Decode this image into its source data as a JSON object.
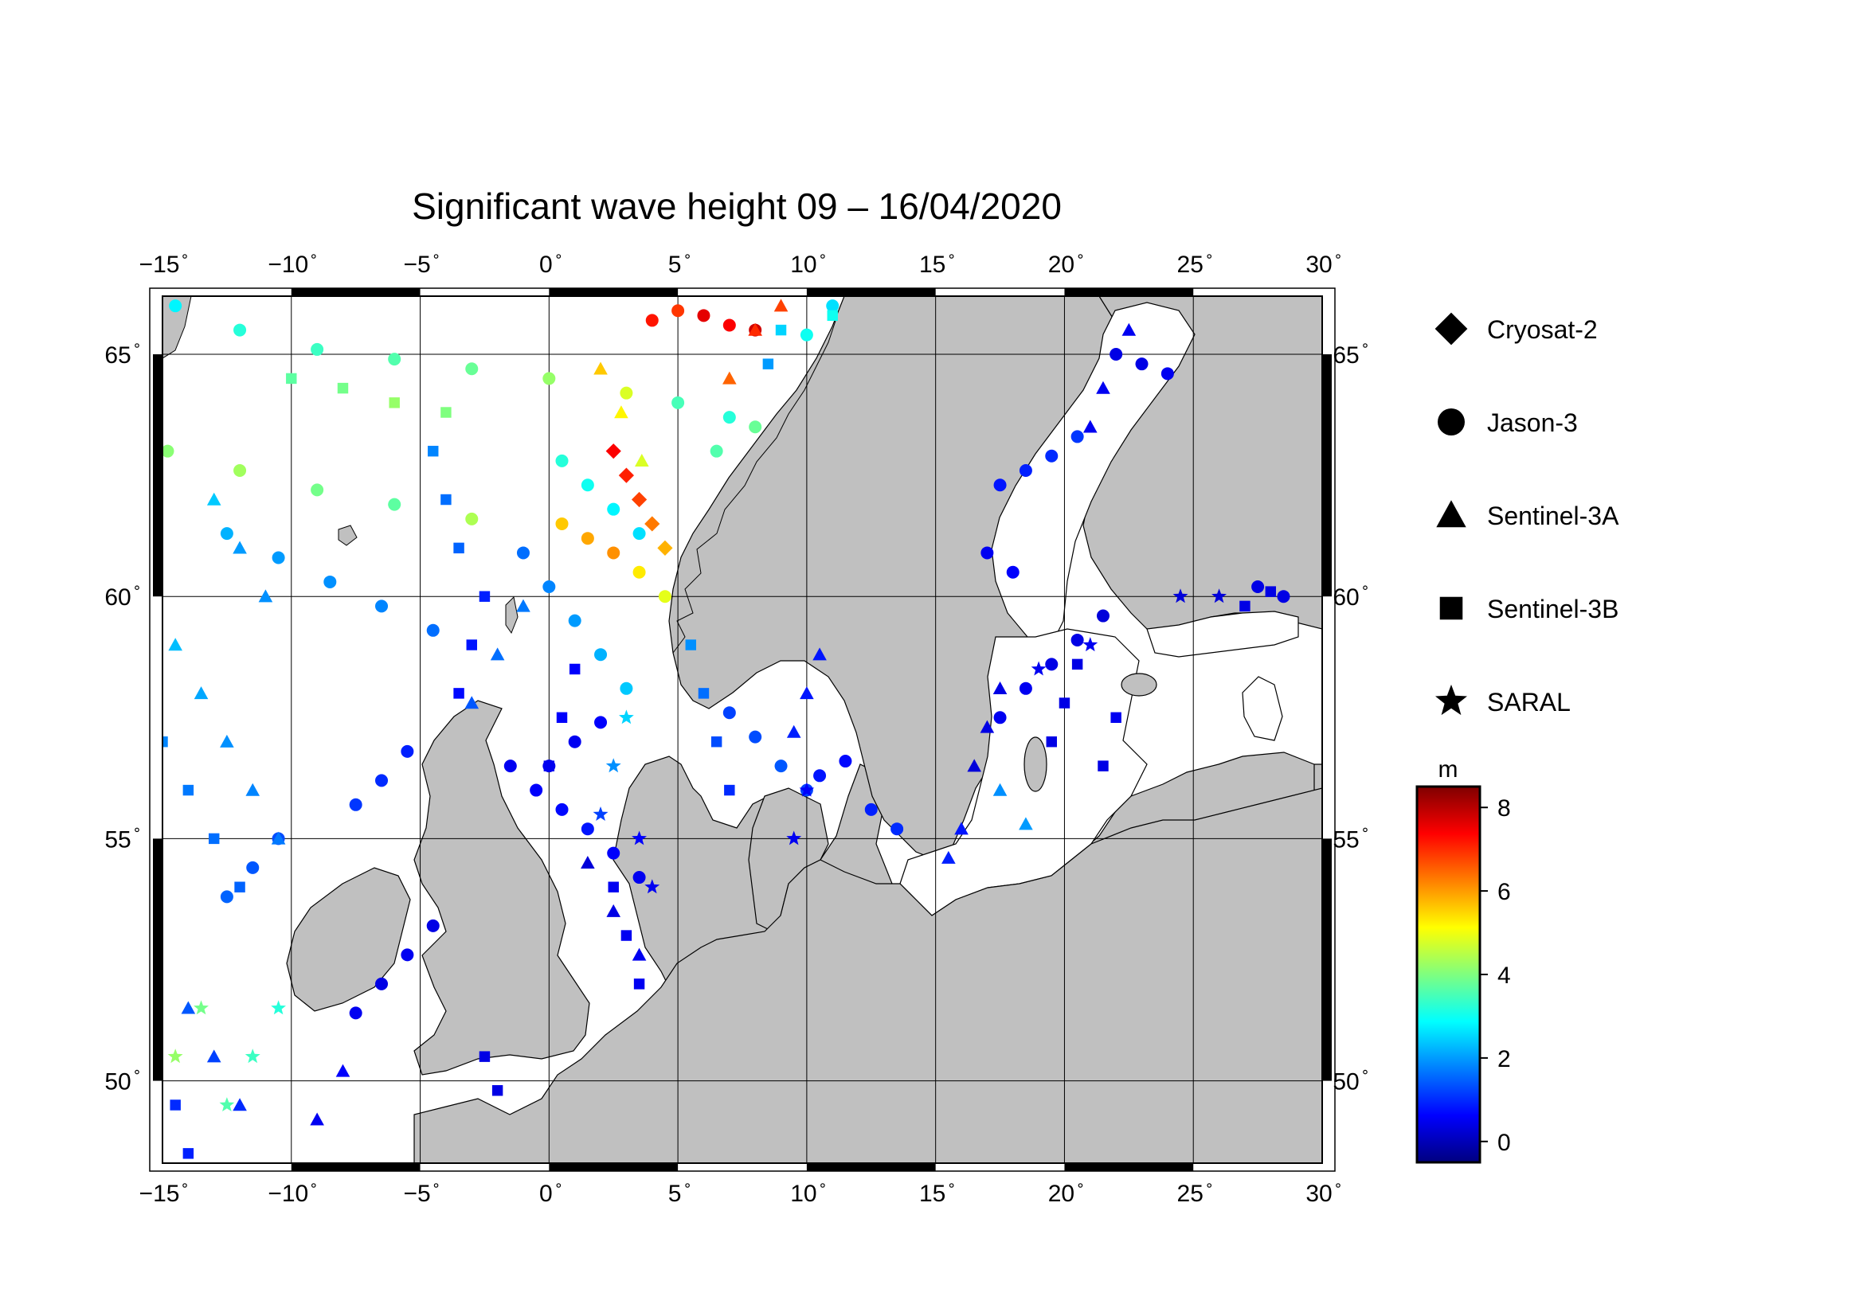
{
  "title": "Significant wave height 09 – 16/04/2020",
  "lon_ticks": [
    {
      "value": -15,
      "label": "−15"
    },
    {
      "value": -10,
      "label": "−10"
    },
    {
      "value": -5,
      "label": "−5"
    },
    {
      "value": 0,
      "label": "0"
    },
    {
      "value": 5,
      "label": "5"
    },
    {
      "value": 10,
      "label": "10"
    },
    {
      "value": 15,
      "label": "15"
    },
    {
      "value": 20,
      "label": "20"
    },
    {
      "value": 25,
      "label": "25"
    },
    {
      "value": 30,
      "label": "30"
    }
  ],
  "lat_ticks": [
    {
      "value": 65,
      "label": "65"
    },
    {
      "value": 60,
      "label": "60"
    },
    {
      "value": 55,
      "label": "55"
    },
    {
      "value": 50,
      "label": "50"
    }
  ],
  "legend": [
    {
      "name": "Cryosat-2",
      "symbol": "diamond"
    },
    {
      "name": "Jason-3",
      "symbol": "circle"
    },
    {
      "name": "Sentinel-3A",
      "symbol": "triangle"
    },
    {
      "name": "Sentinel-3B",
      "symbol": "square"
    },
    {
      "name": "SARAL",
      "symbol": "star"
    }
  ],
  "colorbar": {
    "unit": "m",
    "min": -0.5,
    "max": 8.5,
    "ticks": [
      {
        "value": 0,
        "label": "0"
      },
      {
        "value": 2,
        "label": "2"
      },
      {
        "value": 4,
        "label": "4"
      },
      {
        "value": 6,
        "label": "6"
      },
      {
        "value": 8,
        "label": "8"
      }
    ],
    "colors": [
      "#00007f",
      "#0000ff",
      "#007fff",
      "#00ffff",
      "#7fff7f",
      "#ffff00",
      "#ff7f00",
      "#ff0000",
      "#7f0000"
    ]
  },
  "colors": {
    "land": "#c0c0c0",
    "sea": "#ffffff",
    "grid": "#000000"
  },
  "chart_data": {
    "type": "scatter",
    "xlim": [
      -15,
      30
    ],
    "ylim": [
      48.3,
      66.2
    ],
    "value_unit": "m",
    "series": [
      {
        "name": "Jason-3",
        "symbol": "circle",
        "points": [
          [
            -14.5,
            66.0,
            2.8
          ],
          [
            -12.0,
            65.5,
            3.2
          ],
          [
            -9.0,
            65.1,
            3.4
          ],
          [
            -6.0,
            64.9,
            3.6
          ],
          [
            -3.0,
            64.7,
            3.8
          ],
          [
            0.0,
            64.5,
            4.2
          ],
          [
            3.0,
            64.2,
            4.8
          ],
          [
            5.0,
            64.0,
            3.5
          ],
          [
            7.0,
            63.7,
            3.2
          ],
          [
            -14.8,
            63.0,
            4.1
          ],
          [
            -12.0,
            62.6,
            4.3
          ],
          [
            -9.0,
            62.2,
            3.9
          ],
          [
            -6.0,
            61.9,
            3.7
          ],
          [
            -3.0,
            61.6,
            4.4
          ],
          [
            -12.5,
            61.3,
            2.2
          ],
          [
            -10.5,
            60.8,
            2.0
          ],
          [
            -8.5,
            60.3,
            1.9
          ],
          [
            -6.5,
            59.8,
            1.8
          ],
          [
            -4.5,
            59.3,
            1.6
          ],
          [
            -1.0,
            60.9,
            1.6
          ],
          [
            0.0,
            60.2,
            1.8
          ],
          [
            1.0,
            59.5,
            2.0
          ],
          [
            2.0,
            58.8,
            2.2
          ],
          [
            3.0,
            58.1,
            2.4
          ],
          [
            0.5,
            61.5,
            5.6
          ],
          [
            1.5,
            61.2,
            5.9
          ],
          [
            2.5,
            60.9,
            6.1
          ],
          [
            3.5,
            60.5,
            5.3
          ],
          [
            4.5,
            60.0,
            4.9
          ],
          [
            0.5,
            62.8,
            3.2
          ],
          [
            1.5,
            62.3,
            3.0
          ],
          [
            2.5,
            61.8,
            2.8
          ],
          [
            3.5,
            61.3,
            2.6
          ],
          [
            6.0,
            65.8,
            7.6
          ],
          [
            7.0,
            65.6,
            7.4
          ],
          [
            8.0,
            65.5,
            7.8
          ],
          [
            4.0,
            65.7,
            7.2
          ],
          [
            5.0,
            65.9,
            6.9
          ],
          [
            -1.5,
            56.5,
            0.5
          ],
          [
            -0.5,
            56.0,
            0.6
          ],
          [
            0.5,
            55.6,
            0.7
          ],
          [
            1.5,
            55.2,
            0.8
          ],
          [
            2.5,
            54.7,
            0.6
          ],
          [
            3.5,
            54.2,
            0.5
          ],
          [
            0.0,
            56.5,
            0.4
          ],
          [
            1.0,
            57.0,
            0.5
          ],
          [
            2.0,
            57.4,
            0.6
          ],
          [
            -5.5,
            56.8,
            0.9
          ],
          [
            -6.5,
            56.2,
            1.0
          ],
          [
            -7.5,
            55.7,
            1.1
          ],
          [
            -10.5,
            55.0,
            1.3
          ],
          [
            -11.5,
            54.4,
            1.4
          ],
          [
            -12.5,
            53.8,
            1.5
          ],
          [
            -4.5,
            53.2,
            0.4
          ],
          [
            -5.5,
            52.6,
            0.5
          ],
          [
            -6.5,
            52.0,
            0.4
          ],
          [
            -7.5,
            51.4,
            0.5
          ],
          [
            7.0,
            57.6,
            1.2
          ],
          [
            8.0,
            57.1,
            1.3
          ],
          [
            9.0,
            56.5,
            1.4
          ],
          [
            10.0,
            56.0,
            1.2
          ],
          [
            10.5,
            56.3,
            0.8
          ],
          [
            11.5,
            56.6,
            0.7
          ],
          [
            12.5,
            55.6,
            0.9
          ],
          [
            13.5,
            55.2,
            1.0
          ],
          [
            17.5,
            57.5,
            0.5
          ],
          [
            18.5,
            58.1,
            0.5
          ],
          [
            19.5,
            58.6,
            0.4
          ],
          [
            20.5,
            59.1,
            0.4
          ],
          [
            21.5,
            59.6,
            0.3
          ],
          [
            17.5,
            62.3,
            0.8
          ],
          [
            18.5,
            62.6,
            0.9
          ],
          [
            19.5,
            62.9,
            1.0
          ],
          [
            20.5,
            63.3,
            1.1
          ],
          [
            17.0,
            60.9,
            0.5
          ],
          [
            18.0,
            60.5,
            0.6
          ],
          [
            22.0,
            65.0,
            0.4
          ],
          [
            23.0,
            64.8,
            0.4
          ],
          [
            24.0,
            64.6,
            0.5
          ],
          [
            27.5,
            60.2,
            0.4
          ],
          [
            28.5,
            60.0,
            0.4
          ],
          [
            8.0,
            63.5,
            3.8
          ],
          [
            6.5,
            63.0,
            3.6
          ],
          [
            10.0,
            65.4,
            3.0
          ],
          [
            11.0,
            66.0,
            2.6
          ]
        ]
      },
      {
        "name": "Sentinel-3A",
        "symbol": "triangle",
        "points": [
          [
            -14.5,
            59.0,
            2.3
          ],
          [
            -13.5,
            58.0,
            2.1
          ],
          [
            -12.5,
            57.0,
            1.9
          ],
          [
            -11.5,
            56.0,
            1.8
          ],
          [
            -10.5,
            55.0,
            1.7
          ],
          [
            -13.0,
            62.0,
            2.4
          ],
          [
            -12.0,
            61.0,
            2.0
          ],
          [
            -11.0,
            60.0,
            1.9
          ],
          [
            -14.0,
            51.5,
            1.4
          ],
          [
            -13.0,
            50.5,
            1.2
          ],
          [
            -12.0,
            49.5,
            1.0
          ],
          [
            -8.0,
            50.2,
            0.6
          ],
          [
            -9.0,
            49.2,
            0.5
          ],
          [
            -1.0,
            59.8,
            1.7
          ],
          [
            -2.0,
            58.8,
            1.6
          ],
          [
            -3.0,
            57.8,
            1.4
          ],
          [
            1.5,
            54.5,
            0.3
          ],
          [
            2.5,
            53.5,
            0.4
          ],
          [
            3.5,
            52.6,
            0.5
          ],
          [
            2.0,
            64.7,
            5.6
          ],
          [
            2.8,
            63.8,
            5.2
          ],
          [
            3.6,
            62.8,
            4.8
          ],
          [
            7.0,
            64.5,
            6.5
          ],
          [
            8.0,
            65.5,
            7.0
          ],
          [
            9.0,
            66.0,
            6.8
          ],
          [
            10.5,
            58.8,
            0.8
          ],
          [
            10.0,
            58.0,
            0.8
          ],
          [
            9.5,
            57.2,
            0.9
          ],
          [
            16.5,
            56.5,
            0.3
          ],
          [
            17.0,
            57.3,
            0.4
          ],
          [
            17.5,
            58.1,
            0.4
          ],
          [
            21.0,
            63.5,
            0.5
          ],
          [
            21.5,
            64.3,
            0.5
          ],
          [
            22.5,
            65.5,
            0.5
          ],
          [
            16.0,
            55.2,
            0.8
          ],
          [
            15.5,
            54.6,
            0.9
          ],
          [
            18.5,
            55.3,
            2.0
          ],
          [
            17.5,
            56.0,
            1.9
          ]
        ]
      },
      {
        "name": "Sentinel-3B",
        "symbol": "square",
        "points": [
          [
            -15.0,
            57.0,
            1.8
          ],
          [
            -14.0,
            56.0,
            1.7
          ],
          [
            -13.0,
            55.0,
            1.6
          ],
          [
            -12.0,
            54.0,
            1.5
          ],
          [
            -14.5,
            49.5,
            1.0
          ],
          [
            -14.0,
            48.5,
            0.9
          ],
          [
            -10.0,
            64.5,
            3.7
          ],
          [
            -8.0,
            64.3,
            3.9
          ],
          [
            -6.0,
            64.0,
            4.2
          ],
          [
            -4.0,
            63.8,
            4.0
          ],
          [
            -3.5,
            61.0,
            1.5
          ],
          [
            -4.0,
            62.0,
            1.6
          ],
          [
            -4.5,
            63.0,
            1.8
          ],
          [
            -2.5,
            60.0,
            0.9
          ],
          [
            -3.0,
            59.0,
            0.8
          ],
          [
            -3.5,
            58.0,
            0.7
          ],
          [
            1.0,
            58.5,
            0.6
          ],
          [
            0.5,
            57.5,
            0.6
          ],
          [
            0.0,
            56.5,
            0.5
          ],
          [
            5.5,
            59.0,
            1.9
          ],
          [
            6.0,
            58.0,
            1.6
          ],
          [
            6.5,
            57.0,
            1.3
          ],
          [
            7.0,
            56.0,
            1.0
          ],
          [
            2.5,
            54.0,
            0.5
          ],
          [
            3.0,
            53.0,
            0.5
          ],
          [
            3.5,
            52.0,
            0.5
          ],
          [
            -2.5,
            50.5,
            0.4
          ],
          [
            -2.0,
            49.8,
            0.4
          ],
          [
            8.5,
            64.8,
            2.0
          ],
          [
            9.0,
            65.5,
            2.5
          ],
          [
            11.0,
            65.8,
            3.0
          ],
          [
            19.5,
            57.0,
            0.4
          ],
          [
            20.0,
            57.8,
            0.4
          ],
          [
            20.5,
            58.6,
            0.4
          ],
          [
            21.5,
            56.5,
            0.4
          ],
          [
            22.0,
            57.5,
            0.5
          ],
          [
            27.0,
            59.8,
            0.4
          ],
          [
            28.0,
            60.1,
            0.4
          ]
        ]
      },
      {
        "name": "SARAL",
        "symbol": "star",
        "points": [
          [
            -12.5,
            49.5,
            3.6
          ],
          [
            -11.5,
            50.5,
            3.4
          ],
          [
            -10.5,
            51.5,
            3.2
          ],
          [
            -14.5,
            50.5,
            4.2
          ],
          [
            -13.5,
            51.5,
            3.9
          ],
          [
            3.0,
            57.5,
            2.5
          ],
          [
            2.5,
            56.5,
            1.9
          ],
          [
            2.0,
            55.5,
            1.2
          ],
          [
            4.0,
            54.0,
            0.5
          ],
          [
            3.5,
            55.0,
            0.6
          ],
          [
            9.5,
            55.0,
            0.5
          ],
          [
            10.0,
            56.0,
            0.6
          ],
          [
            19.0,
            58.5,
            0.5
          ],
          [
            21.0,
            59.0,
            0.5
          ],
          [
            24.5,
            60.0,
            0.3
          ],
          [
            26.0,
            60.0,
            0.3
          ]
        ]
      },
      {
        "name": "Cryosat-2",
        "symbol": "diamond",
        "points": [
          [
            2.5,
            63.0,
            7.4
          ],
          [
            3.0,
            62.5,
            7.1
          ],
          [
            3.5,
            62.0,
            6.8
          ],
          [
            4.0,
            61.5,
            6.3
          ],
          [
            4.5,
            61.0,
            5.8
          ]
        ]
      }
    ]
  }
}
